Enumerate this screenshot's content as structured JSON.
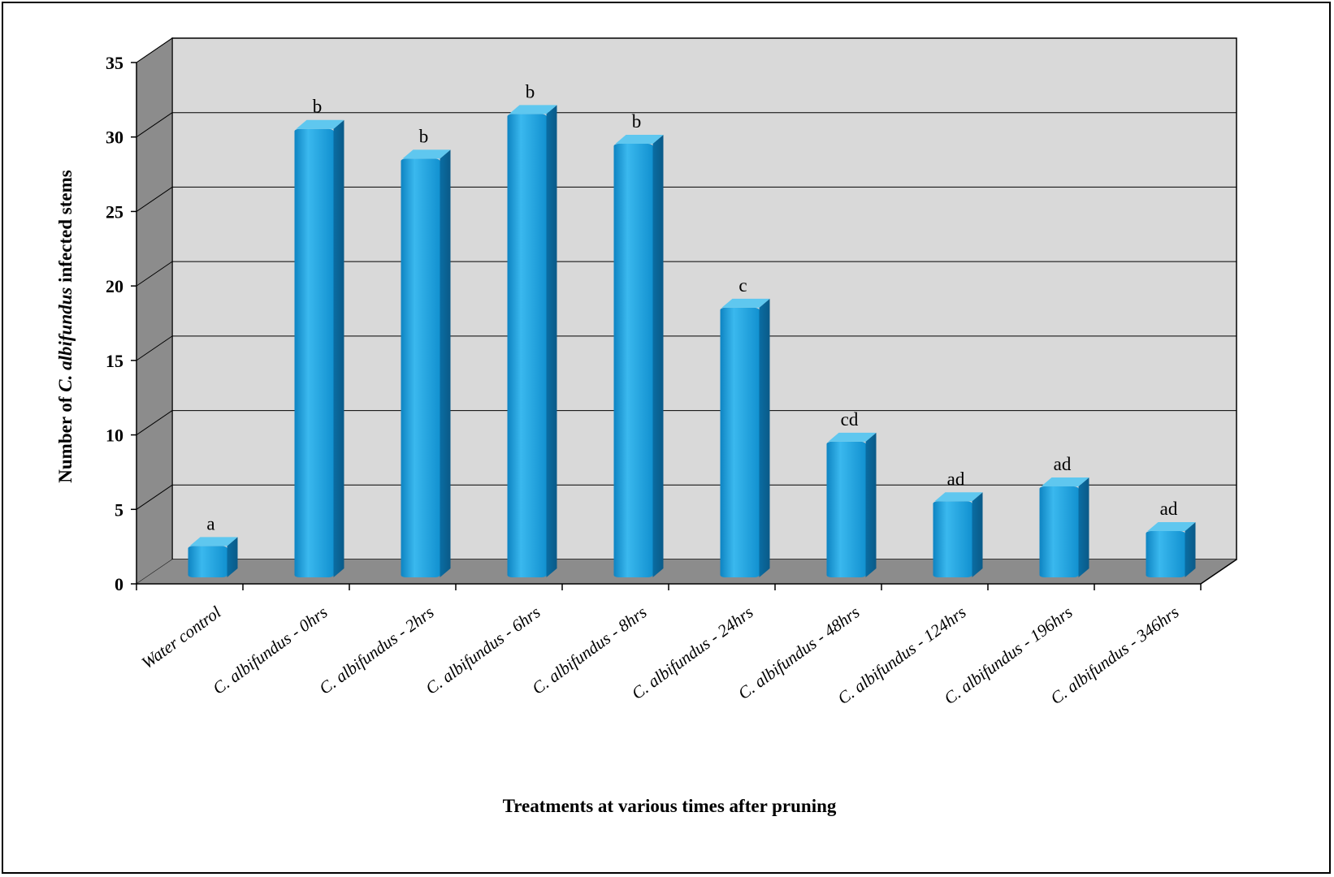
{
  "chart_data": {
    "type": "bar",
    "title": "",
    "xlabel": "Treatments at various times after pruning",
    "ylabel": "Number of C. albifundus infected stems",
    "ylabel_parts": {
      "prefix": "Number of ",
      "italic": "C. albifundus",
      "suffix": " infected stems"
    },
    "ylim": [
      0,
      35
    ],
    "yticks": [
      0,
      5,
      10,
      15,
      20,
      25,
      30,
      35
    ],
    "grid": true,
    "legend": "none",
    "categories": [
      "Water control",
      "C. albifundus - 0hrs",
      "C. albifundus - 2hrs",
      "C. albifundus - 6hrs",
      "C. albifundus - 8hrs",
      "C. albifundus - 24hrs",
      "C. albifundus - 48hrs",
      "C. albifundus - 124hrs",
      "C. albifundus - 196hrs",
      "C. albifundus - 346hrs"
    ],
    "values": [
      2,
      30,
      28,
      31,
      29,
      18,
      9,
      5,
      6,
      3
    ],
    "data_labels": [
      "a",
      "b",
      "b",
      "b",
      "b",
      "c",
      "cd",
      "ad",
      "ad",
      "ad"
    ],
    "colors": {
      "bar_front": "#1aa0dc",
      "bar_side": "#0a6a9c",
      "bar_top": "#5fc7ef",
      "back_wall": "#d9d9d9",
      "side_wall": "#8c8c8c",
      "floor": "#8c8c8c"
    }
  }
}
